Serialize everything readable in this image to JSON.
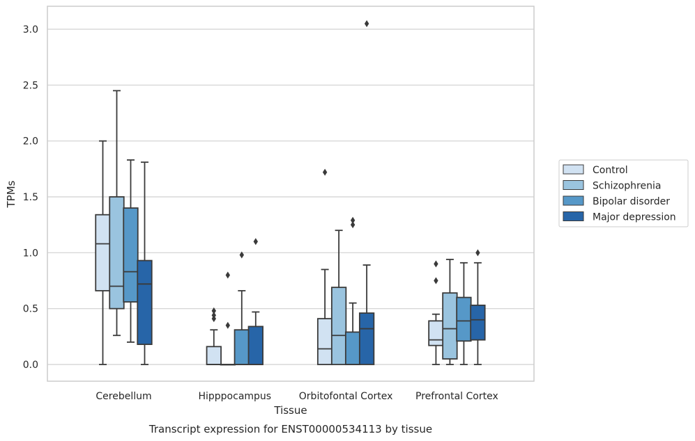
{
  "chart_data": {
    "type": "box",
    "title": "",
    "caption": "Transcript expression for ENST00000534113 by tissue",
    "xlabel": "Tissue",
    "ylabel": "TPMs",
    "ylim": [
      -0.15,
      3.2
    ],
    "yticks": [
      0.0,
      0.5,
      1.0,
      1.5,
      2.0,
      2.5,
      3.0
    ],
    "ytick_labels": [
      "0.0",
      "0.5",
      "1.0",
      "1.5",
      "2.0",
      "2.5",
      "3.0"
    ],
    "grid": "horizontal",
    "legend_position": "right",
    "categories": [
      "Cerebellum",
      "Hipppocampus",
      "Orbitofontal Cortex",
      "Prefrontal Cortex"
    ],
    "series": [
      {
        "name": "Control",
        "color": "#d1e2f2",
        "boxes": [
          {
            "whisker_low": 0.0,
            "q1": 0.66,
            "median": 1.08,
            "q3": 1.34,
            "whisker_high": 2.0,
            "outliers": []
          },
          {
            "whisker_low": 0.0,
            "q1": 0.0,
            "median": 0.0,
            "q3": 0.16,
            "whisker_high": 0.31,
            "outliers": [
              0.41,
              0.44,
              0.48
            ]
          },
          {
            "whisker_low": 0.0,
            "q1": 0.0,
            "median": 0.14,
            "q3": 0.41,
            "whisker_high": 0.85,
            "outliers": [
              1.72
            ]
          },
          {
            "whisker_low": 0.0,
            "q1": 0.17,
            "median": 0.22,
            "q3": 0.39,
            "whisker_high": 0.45,
            "outliers": [
              0.75,
              0.9
            ]
          }
        ]
      },
      {
        "name": "Schizophrenia",
        "color": "#9ac4df",
        "boxes": [
          {
            "whisker_low": 0.26,
            "q1": 0.5,
            "median": 0.7,
            "q3": 1.5,
            "whisker_high": 2.45,
            "outliers": []
          },
          {
            "whisker_low": 0.0,
            "q1": 0.0,
            "median": 0.0,
            "q3": 0.0,
            "whisker_high": 0.0,
            "outliers": [
              0.35,
              0.8
            ]
          },
          {
            "whisker_low": 0.0,
            "q1": 0.0,
            "median": 0.26,
            "q3": 0.69,
            "whisker_high": 1.2,
            "outliers": []
          },
          {
            "whisker_low": 0.0,
            "q1": 0.05,
            "median": 0.32,
            "q3": 0.64,
            "whisker_high": 0.94,
            "outliers": []
          }
        ]
      },
      {
        "name": "Bipolar disorder",
        "color": "#5698c8",
        "boxes": [
          {
            "whisker_low": 0.2,
            "q1": 0.56,
            "median": 0.83,
            "q3": 1.4,
            "whisker_high": 1.83,
            "outliers": []
          },
          {
            "whisker_low": 0.0,
            "q1": 0.0,
            "median": 0.0,
            "q3": 0.31,
            "whisker_high": 0.66,
            "outliers": [
              0.98
            ]
          },
          {
            "whisker_low": 0.0,
            "q1": 0.0,
            "median": 0.0,
            "q3": 0.29,
            "whisker_high": 0.55,
            "outliers": [
              1.25,
              1.29
            ]
          },
          {
            "whisker_low": 0.0,
            "q1": 0.21,
            "median": 0.39,
            "q3": 0.6,
            "whisker_high": 0.91,
            "outliers": []
          }
        ]
      },
      {
        "name": "Major depression",
        "color": "#2765a8",
        "boxes": [
          {
            "whisker_low": 0.0,
            "q1": 0.18,
            "median": 0.72,
            "q3": 0.93,
            "whisker_high": 1.81,
            "outliers": []
          },
          {
            "whisker_low": 0.0,
            "q1": 0.0,
            "median": 0.0,
            "q3": 0.34,
            "whisker_high": 0.47,
            "outliers": [
              1.1
            ]
          },
          {
            "whisker_low": 0.0,
            "q1": 0.0,
            "median": 0.32,
            "q3": 0.46,
            "whisker_high": 0.89,
            "outliers": [
              3.05
            ]
          },
          {
            "whisker_low": 0.0,
            "q1": 0.22,
            "median": 0.4,
            "q3": 0.53,
            "whisker_high": 0.91,
            "outliers": [
              1.0
            ]
          }
        ]
      }
    ]
  }
}
